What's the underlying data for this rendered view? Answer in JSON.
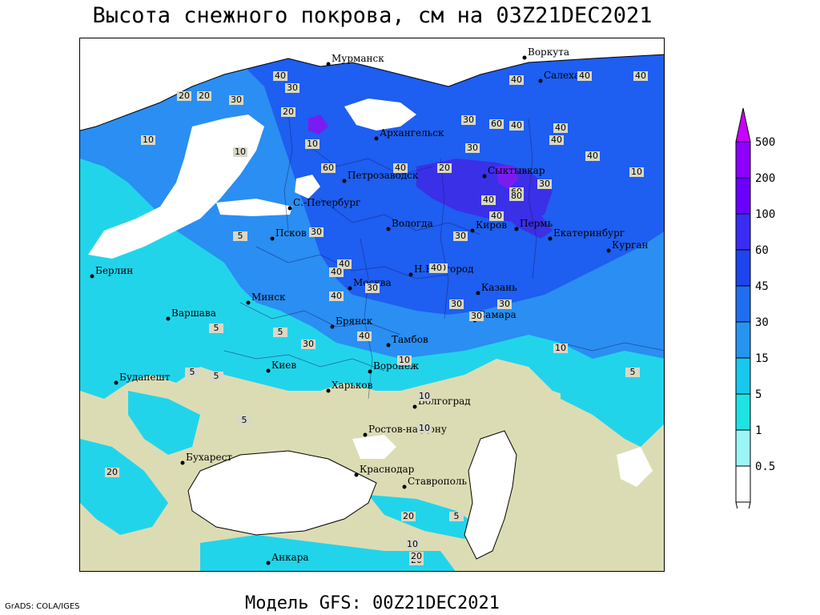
{
  "title": "Высота снежного покрова, см на 03Z21DEC2021",
  "footer": "Модель GFS: 00Z21DEC2021",
  "credit": "GrADS: COLA/IGES",
  "colorbar": {
    "levels": [
      {
        "label": "500",
        "color": "#c800ff"
      },
      {
        "label": "200",
        "color": "#8e00ff"
      },
      {
        "label": "100",
        "color": "#6a00ff"
      },
      {
        "label": "60",
        "color": "#3a2cf5"
      },
      {
        "label": "45",
        "color": "#1e44ee"
      },
      {
        "label": "30",
        "color": "#1f6ef0"
      },
      {
        "label": "15",
        "color": "#2894f2"
      },
      {
        "label": "5",
        "color": "#19c8ee"
      },
      {
        "label": "1",
        "color": "#1ee3e3"
      },
      {
        "label": "0.5",
        "color": "#9cf5f5"
      }
    ]
  },
  "colors": {
    "land": "#dcdcb4",
    "sea": "#ffffff",
    "snow_light": "#22d4ea",
    "snow_mid": "#2a8ef2",
    "snow_deep": "#1e5ef0",
    "snow_heavy": "#3a30e8",
    "snow_extreme": "#7a1cf0"
  },
  "cities": [
    {
      "name": "Мурманск"
    },
    {
      "name": "Воркута"
    },
    {
      "name": "Салехард"
    },
    {
      "name": "Архангельск"
    },
    {
      "name": "Сыктывкар"
    },
    {
      "name": "Петрозаводск"
    },
    {
      "name": "С.-Петербург"
    },
    {
      "name": "Вологда"
    },
    {
      "name": "Киров"
    },
    {
      "name": "Пермь"
    },
    {
      "name": "Екатеринбург"
    },
    {
      "name": "Курган"
    },
    {
      "name": "Псков"
    },
    {
      "name": "Н.Новгород"
    },
    {
      "name": "Москва"
    },
    {
      "name": "Казань"
    },
    {
      "name": "Берлин"
    },
    {
      "name": "Варшава"
    },
    {
      "name": "Минск"
    },
    {
      "name": "Брянск"
    },
    {
      "name": "Самара"
    },
    {
      "name": "Тамбов"
    },
    {
      "name": "Воронеж"
    },
    {
      "name": "Киев"
    },
    {
      "name": "Будапешт"
    },
    {
      "name": "Харьков"
    },
    {
      "name": "Волгоград"
    },
    {
      "name": "Ростов-на-Дону"
    },
    {
      "name": "Бухарест"
    },
    {
      "name": "Краснодар"
    },
    {
      "name": "Ставрополь"
    },
    {
      "name": "Анкара"
    }
  ],
  "contour_labels": [
    "40",
    "40",
    "30",
    "20",
    "20",
    "30",
    "20",
    "40",
    "40",
    "10",
    "10",
    "30",
    "60",
    "40",
    "20",
    "10",
    "60",
    "40",
    "40",
    "30",
    "60",
    "30",
    "40",
    "80",
    "40",
    "30",
    "40",
    "40",
    "40",
    "40",
    "40",
    "10",
    "5",
    "5",
    "30",
    "40",
    "40",
    "30",
    "30",
    "30",
    "10",
    "40",
    "30",
    "40",
    "30",
    "10",
    "5",
    "5",
    "10",
    "5",
    "5",
    "10",
    "5",
    "20",
    "20",
    "5",
    "10",
    "20",
    "20"
  ]
}
